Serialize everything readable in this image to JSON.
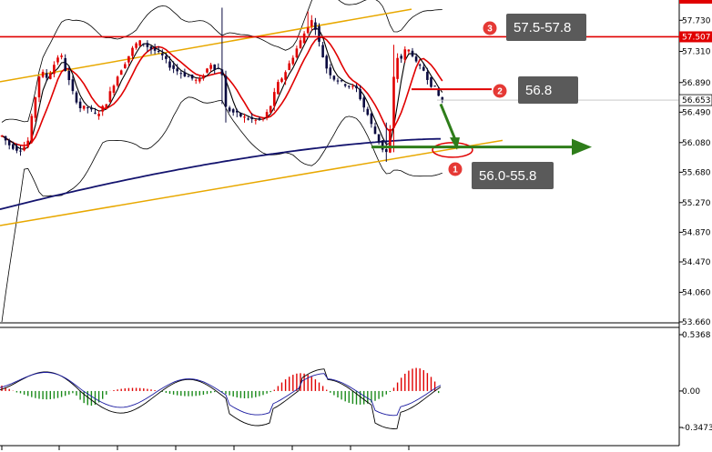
{
  "chart_data": [
    {
      "type": "candlestick",
      "ylim": [
        53.66,
        57.93
      ],
      "y_ticks": [
        "57.730",
        "57.310",
        "56.890",
        "56.490",
        "56.080",
        "55.680",
        "55.270",
        "54.870",
        "54.470",
        "54.060",
        "53.660"
      ],
      "current_price": "56.653",
      "resistance_level": {
        "value": 57.507,
        "label": "57.507"
      },
      "annotations": [
        {
          "id": "1",
          "label": "56.0-55.8"
        },
        {
          "id": "2",
          "label": "56.8"
        },
        {
          "id": "3",
          "label": "57.5-57.8"
        }
      ],
      "colors": {
        "bull": "#e00000",
        "bear": "#0a0a40",
        "ma_red": "#e00000",
        "ma_black": "#000000",
        "ma_navy": "#14146e",
        "channel": "#e8a800",
        "resistance": "#e00000",
        "arrow": "#2e7d1a"
      }
    },
    {
      "type": "macd",
      "ylim": [
        -0.3473,
        0.5368
      ],
      "y_ticks": [
        "0.5368",
        "0.00",
        "-0.3473"
      ],
      "colors": {
        "positive": "#e00000",
        "negative": "#1a8a1a",
        "line_main": "#000000",
        "line_signal": "#1a1aa0"
      }
    }
  ]
}
